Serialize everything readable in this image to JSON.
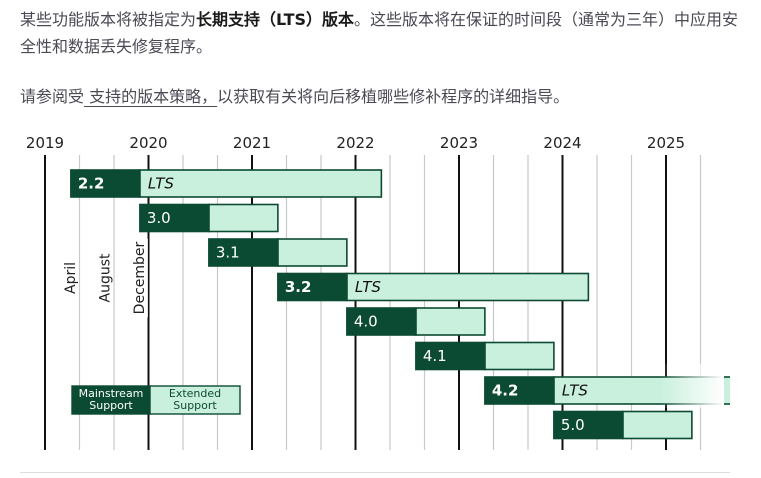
{
  "intro": {
    "p1_before": "某些功能版本将被指定为",
    "p1_bold": "长期支持（LTS）版本",
    "p1_after": "。这些版本将在保证的时间段（通常为三年）中应用安全性和数据丢失修复程序。",
    "p2_before": "请参阅受",
    "p2_link": " 支持的版本策略，",
    "p2_after": "以获取有关将向后移植哪些修补程序的详细指导。"
  },
  "chart_data": {
    "type": "gantt",
    "years": [
      "2019",
      "2020",
      "2021",
      "2022",
      "2023",
      "2024",
      "2025"
    ],
    "months_labels": [
      "April",
      "August",
      "December"
    ],
    "legend": {
      "mainstream": "Mainstream Support",
      "extended": "Extended Support"
    },
    "releases": [
      {
        "version": "2.2",
        "lts": true,
        "lts_label": "LTS",
        "start": "2019-04",
        "mainstream_end": "2019-12",
        "extended_end": "2022-04"
      },
      {
        "version": "3.0",
        "lts": false,
        "start": "2019-12",
        "mainstream_end": "2020-08",
        "extended_end": "2021-04"
      },
      {
        "version": "3.1",
        "lts": false,
        "start": "2020-08",
        "mainstream_end": "2021-04",
        "extended_end": "2021-12"
      },
      {
        "version": "3.2",
        "lts": true,
        "lts_label": "LTS",
        "start": "2021-04",
        "mainstream_end": "2021-12",
        "extended_end": "2024-04"
      },
      {
        "version": "4.0",
        "lts": false,
        "start": "2021-12",
        "mainstream_end": "2022-08",
        "extended_end": "2023-04"
      },
      {
        "version": "4.1",
        "lts": false,
        "start": "2022-08",
        "mainstream_end": "2023-04",
        "extended_end": "2023-12"
      },
      {
        "version": "4.2",
        "lts": true,
        "lts_label": "LTS",
        "start": "2023-04",
        "mainstream_end": "2023-12",
        "extended_end": "2026-04"
      },
      {
        "version": "5.0",
        "lts": false,
        "start": "2023-12",
        "mainstream_end": "2024-08",
        "extended_end": "2025-04"
      }
    ],
    "colors": {
      "mainstream": "#0c4b33",
      "extended": "#c9f0dd",
      "grid": "#c8c8c8",
      "year_line": "#111111"
    }
  }
}
